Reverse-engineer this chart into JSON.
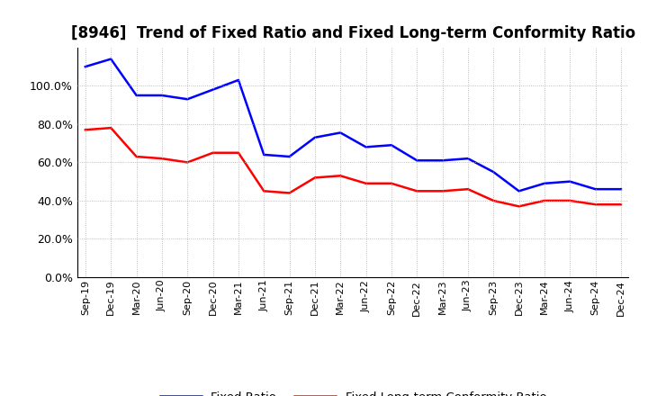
{
  "title": "[8946]  Trend of Fixed Ratio and Fixed Long-term Conformity Ratio",
  "x_labels": [
    "Sep-19",
    "Dec-19",
    "Mar-20",
    "Jun-20",
    "Sep-20",
    "Dec-20",
    "Mar-21",
    "Jun-21",
    "Sep-21",
    "Dec-21",
    "Mar-22",
    "Jun-22",
    "Sep-22",
    "Dec-22",
    "Mar-23",
    "Jun-23",
    "Sep-23",
    "Dec-23",
    "Mar-24",
    "Jun-24",
    "Sep-24",
    "Dec-24"
  ],
  "fixed_ratio": [
    110.0,
    114.0,
    95.0,
    95.0,
    93.0,
    98.0,
    103.0,
    64.0,
    63.0,
    73.0,
    75.5,
    68.0,
    69.0,
    61.0,
    61.0,
    62.0,
    55.0,
    45.0,
    49.0,
    50.0,
    46.0,
    46.0
  ],
  "fixed_lt_ratio": [
    77.0,
    78.0,
    63.0,
    62.0,
    60.0,
    65.0,
    65.0,
    45.0,
    44.0,
    52.0,
    53.0,
    49.0,
    49.0,
    45.0,
    45.0,
    46.0,
    40.0,
    37.0,
    40.0,
    40.0,
    38.0,
    38.0
  ],
  "fixed_ratio_color": "#0000ff",
  "fixed_lt_ratio_color": "#ff0000",
  "ylim": [
    0,
    120
  ],
  "yticks": [
    0.0,
    20.0,
    40.0,
    60.0,
    80.0,
    100.0
  ],
  "ytick_labels": [
    "0.0%",
    "20.0%",
    "40.0%",
    "60.0%",
    "80.0%",
    "100.0%"
  ],
  "legend_fixed_ratio": "Fixed Ratio",
  "legend_fixed_lt_ratio": "Fixed Long-term Conformity Ratio",
  "background_color": "#ffffff",
  "grid_color": "#aaaaaa",
  "line_width": 1.8,
  "title_fontsize": 12,
  "tick_fontsize": 9,
  "xtick_fontsize": 8
}
